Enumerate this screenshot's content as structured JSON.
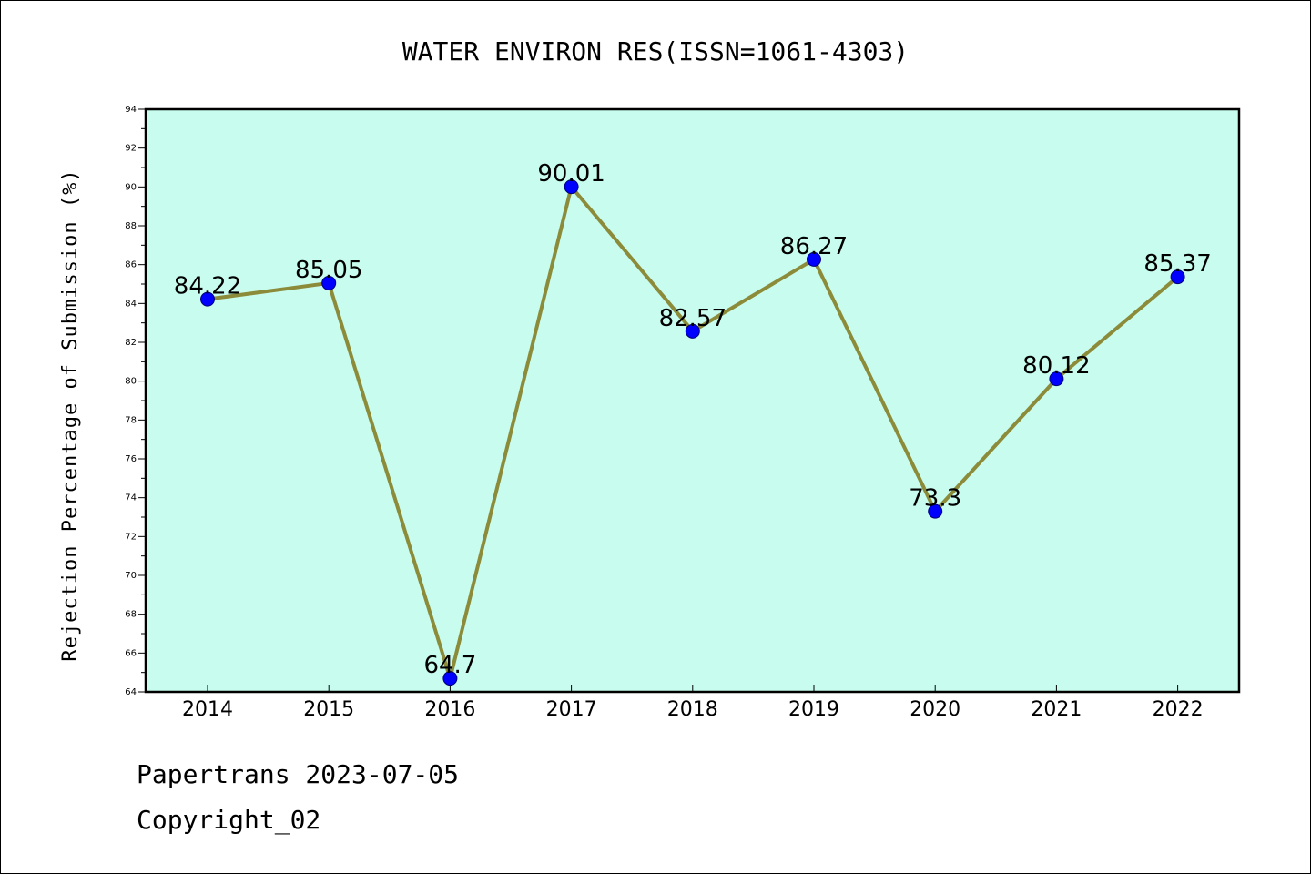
{
  "chart_data": {
    "type": "line",
    "title": "WATER ENVIRON RES(ISSN=1061-4303)",
    "xlabel": "",
    "ylabel": "Rejection Percentage of Submission (%)",
    "categories": [
      "2014",
      "2015",
      "2016",
      "2017",
      "2018",
      "2019",
      "2020",
      "2021",
      "2022"
    ],
    "values": [
      84.22,
      85.05,
      64.7,
      90.01,
      82.57,
      86.27,
      73.3,
      80.12,
      85.37
    ],
    "data_labels": [
      "84.22",
      "85.05",
      "64.7",
      "90.01",
      "82.57",
      "86.27",
      "73.3",
      "80.12",
      "85.37"
    ],
    "ylim": [
      64,
      94
    ],
    "y_ticks": [
      "64",
      "66",
      "68",
      "70",
      "72",
      "74",
      "76",
      "78",
      "80",
      "82",
      "84",
      "86",
      "88",
      "90",
      "92",
      "94"
    ],
    "grid": false,
    "colors": {
      "plot_background": "#c8fcee",
      "line": "#8b8b3a",
      "marker": "#0000ff"
    }
  },
  "footer": {
    "line1": "Papertrans 2023-07-05",
    "line2": "Copyright_02"
  }
}
